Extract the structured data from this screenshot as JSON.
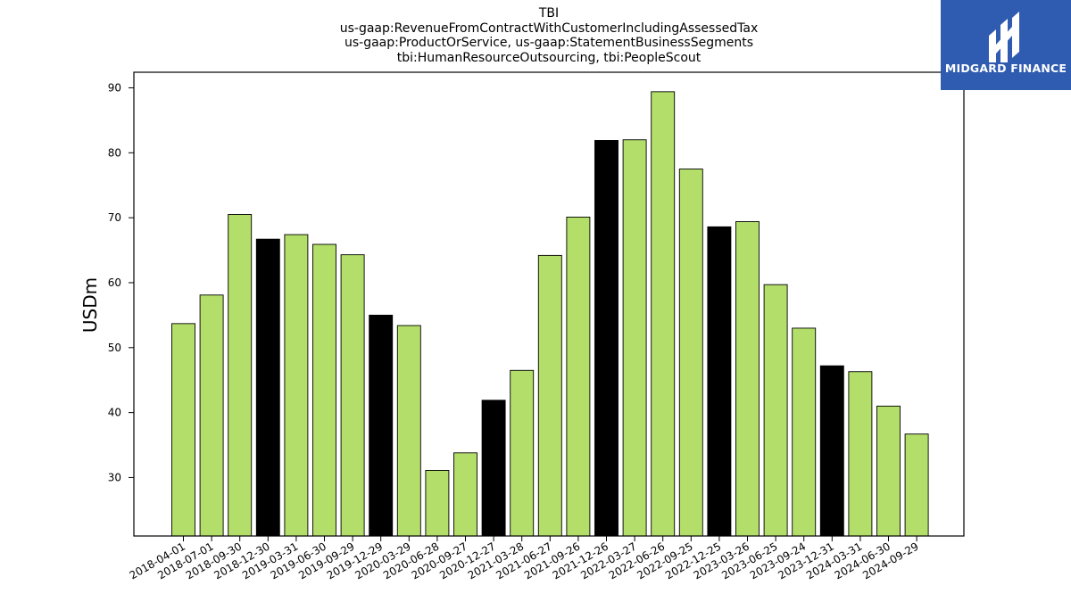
{
  "chart_data": {
    "type": "bar",
    "title_lines": [
      "TBI",
      "us-gaap:RevenueFromContractWithCustomerIncludingAssessedTax",
      "us-gaap:ProductOrService, us-gaap:StatementBusinessSegments",
      "tbi:HumanResourceOutsourcing, tbi:PeopleScout"
    ],
    "ylabel": "USDm",
    "xlabel": "",
    "ylim": [
      21,
      92.4
    ],
    "yticks": [
      30,
      40,
      50,
      60,
      70,
      80,
      90
    ],
    "grid": false,
    "categories": [
      "2018-04-01",
      "2018-07-01",
      "2018-09-30",
      "2018-12-30",
      "2019-03-31",
      "2019-06-30",
      "2019-09-29",
      "2019-12-29",
      "2020-03-29",
      "2020-06-28",
      "2020-09-27",
      "2020-12-27",
      "2021-03-28",
      "2021-06-27",
      "2021-09-26",
      "2021-12-26",
      "2022-03-27",
      "2022-06-26",
      "2022-09-25",
      "2022-12-25",
      "2023-03-26",
      "2023-06-25",
      "2023-09-24",
      "2023-12-31",
      "2024-03-31",
      "2024-06-30",
      "2024-09-29"
    ],
    "values": [
      53.7,
      58.1,
      70.5,
      66.7,
      67.4,
      65.9,
      64.3,
      55.0,
      53.4,
      31.1,
      33.8,
      41.9,
      46.5,
      64.2,
      70.1,
      81.9,
      82.0,
      89.4,
      77.5,
      68.6,
      69.4,
      59.7,
      53.0,
      47.2,
      46.3,
      41.0,
      36.7
    ],
    "highlight": [
      false,
      false,
      false,
      true,
      false,
      false,
      false,
      true,
      false,
      false,
      false,
      true,
      false,
      false,
      false,
      true,
      false,
      false,
      false,
      true,
      false,
      false,
      false,
      true,
      false,
      false,
      false
    ],
    "colors": {
      "bar": "#b3de69",
      "highlight": "#000000",
      "edge": "#000000"
    }
  },
  "logo": {
    "text": "MIDGARD FINANCE",
    "bg_color": "#2f5bb0"
  }
}
